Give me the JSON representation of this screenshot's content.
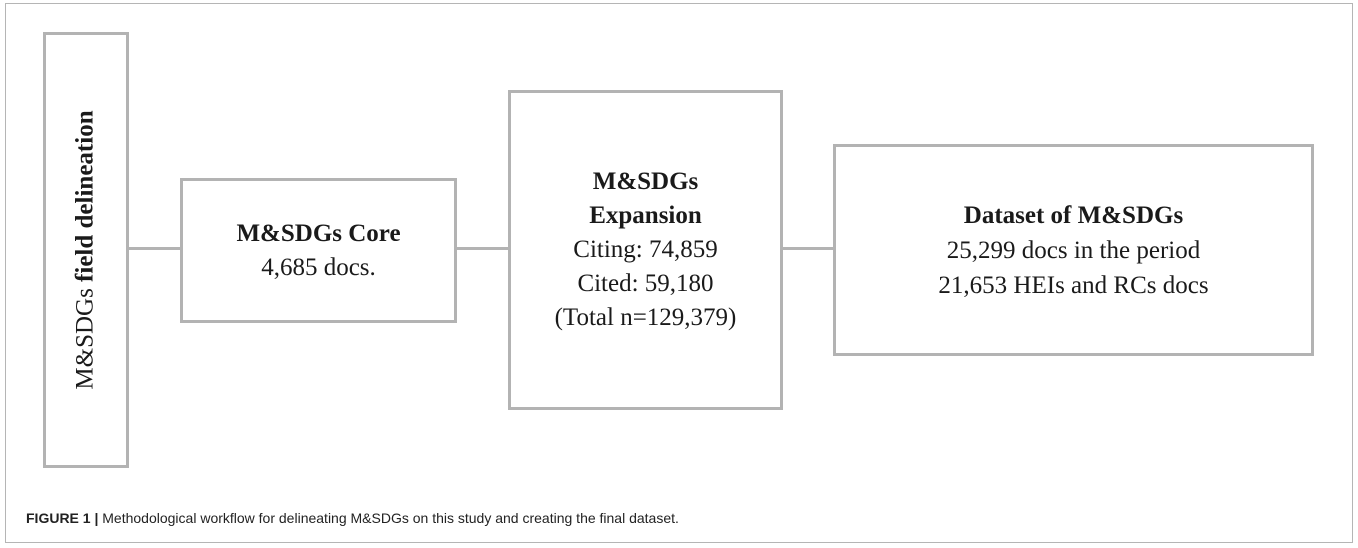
{
  "diagram": {
    "vertical_box": {
      "text_regular": "M&SDGs",
      "text_bold": "field delineation"
    },
    "core_box": {
      "title": "M&SDGs Core",
      "line1": "4,685 docs."
    },
    "expansion_box": {
      "title_line1": "M&SDGs",
      "title_line2": "Expansion",
      "line1": "Citing: 74,859",
      "line2": "Cited: 59,180",
      "line3": "(Total n=129,379)"
    },
    "dataset_box": {
      "title": "Dataset of M&SDGs",
      "line1": "25,299 docs in the period",
      "line2": "21,653 HEIs and RCs docs"
    }
  },
  "caption": {
    "label": "FIGURE 1 |",
    "text": "Methodological workflow for delineating M&SDGs on this study and creating the final dataset."
  },
  "colors": {
    "box_border": "#b3b3b3",
    "frame_border": "#b5b5b5",
    "text": "#1a1a1a"
  }
}
